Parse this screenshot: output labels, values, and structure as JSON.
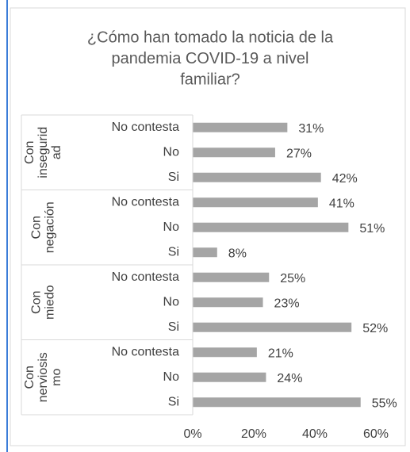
{
  "chart_data": {
    "type": "bar",
    "orientation": "horizontal",
    "title": [
      "¿Cómo han tomado la noticia de la",
      "pandemia COVID-19 a nivel",
      "familiar?"
    ],
    "color": "#a5a5a5",
    "groups": [
      {
        "label": [
          "Con",
          "insegurid",
          "ad"
        ],
        "categories": [
          "No contesta",
          "No",
          "Si"
        ],
        "values": [
          31,
          27,
          42
        ],
        "value_labels": [
          "31%",
          "27%",
          "42%"
        ]
      },
      {
        "label": [
          "Con",
          "negación"
        ],
        "categories": [
          "No contesta",
          "No",
          "Si"
        ],
        "values": [
          41,
          51,
          8
        ],
        "value_labels": [
          "41%",
          "51%",
          "8%"
        ]
      },
      {
        "label": [
          "Con",
          "miedo"
        ],
        "categories": [
          "No contesta",
          "No",
          "Si"
        ],
        "values": [
          25,
          23,
          52
        ],
        "value_labels": [
          "25%",
          "23%",
          "52%"
        ]
      },
      {
        "label": [
          "Con",
          "nerviosis",
          "mo"
        ],
        "categories": [
          "No contesta",
          "No",
          "Si"
        ],
        "values": [
          21,
          24,
          55
        ],
        "value_labels": [
          "21%",
          "24%",
          "55%"
        ]
      }
    ],
    "xlim": [
      0,
      60
    ],
    "xticks": [
      {
        "value": 0,
        "label": "0%"
      },
      {
        "value": 20,
        "label": "20%"
      },
      {
        "value": 40,
        "label": "40%"
      },
      {
        "value": 60,
        "label": "60%"
      }
    ]
  }
}
